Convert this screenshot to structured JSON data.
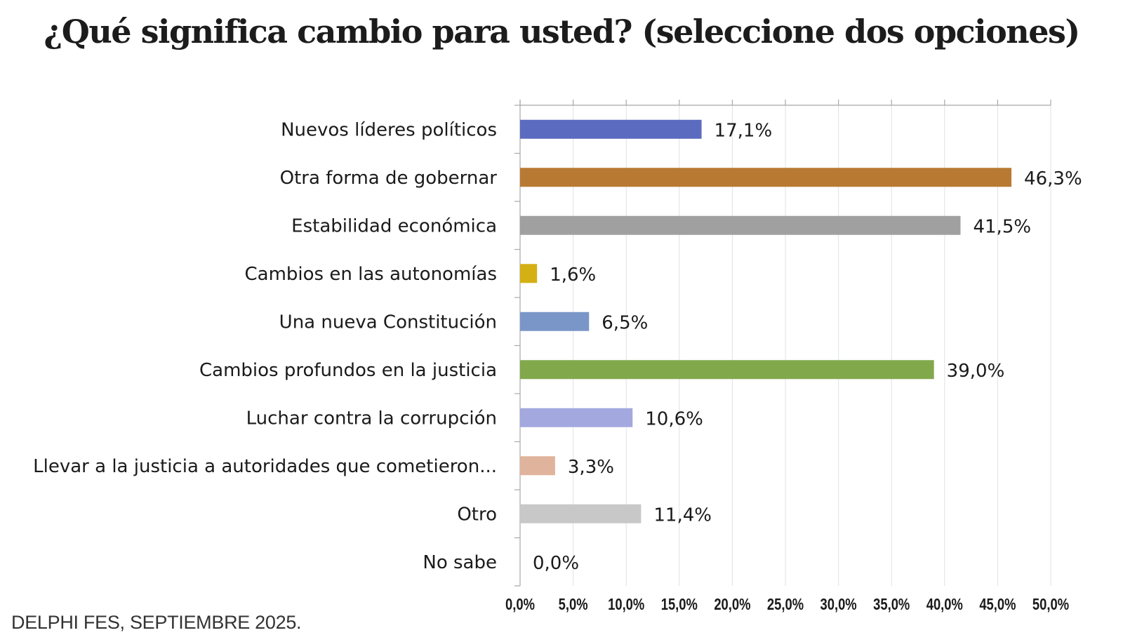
{
  "chart_data": {
    "type": "bar",
    "orientation": "horizontal",
    "title": "¿Qué significa cambio para usted? (seleccione dos opciones)",
    "categories": [
      "Nuevos líderes políticos",
      "Otra forma de gobernar",
      "Estabilidad económica",
      "Cambios en las autonomías",
      "Una nueva Constitución",
      "Cambios profundos en la justicia",
      "Luchar contra la corrupción",
      "Llevar a la justicia a autoridades que cometieron...",
      "Otro",
      "No sabe"
    ],
    "values": [
      17.1,
      46.3,
      41.5,
      1.6,
      6.5,
      39.0,
      10.6,
      3.3,
      11.4,
      0.0
    ],
    "value_labels": [
      "17,1%",
      "46,3%",
      "41,5%",
      "1,6%",
      "6,5%",
      "39,0%",
      "10,6%",
      "3,3%",
      "11,4%",
      "0,0%"
    ],
    "colors": [
      "#5b6bbf",
      "#b87a33",
      "#a0a0a0",
      "#d4b014",
      "#7a96c8",
      "#82a84c",
      "#a3a8de",
      "#e0b49c",
      "#c8c8c8",
      "#c8c8c8"
    ],
    "xlim": [
      0,
      50
    ],
    "xticks": [
      0,
      5,
      10,
      15,
      20,
      25,
      30,
      35,
      40,
      45,
      50
    ],
    "xtick_labels": [
      "0,0%",
      "5,0%",
      "10,0%",
      "15,0%",
      "20,0%",
      "25,0%",
      "30,0%",
      "35,0%",
      "40,0%",
      "45,0%",
      "50,0%"
    ],
    "grid": true,
    "xlabel": "",
    "ylabel": ""
  },
  "source": "DELPHI FES, SEPTIEMBRE 2025."
}
